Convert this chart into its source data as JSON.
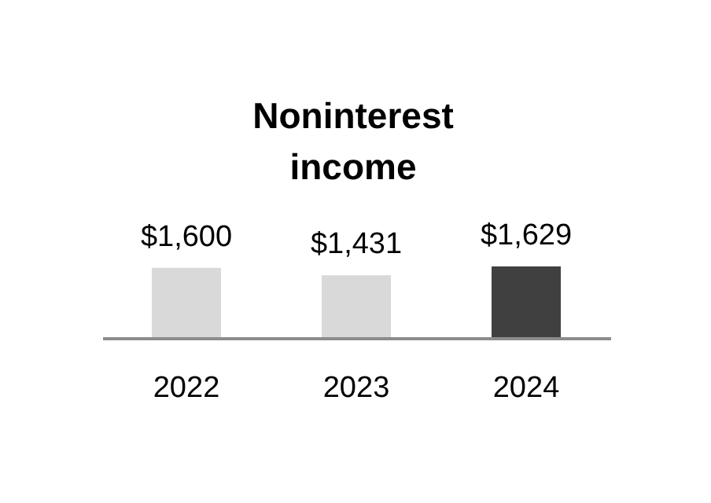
{
  "chart_data": {
    "type": "bar",
    "title": "Noninterest income",
    "categories": [
      "2022",
      "2023",
      "2024"
    ],
    "values": [
      1600,
      1431,
      1629
    ],
    "colors": [
      "#d9d9d9",
      "#d9d9d9",
      "#404040"
    ],
    "data_labels": true,
    "value_labels": [
      "$1,600",
      "$1,431",
      "$1,629"
    ],
    "grid": false
  }
}
